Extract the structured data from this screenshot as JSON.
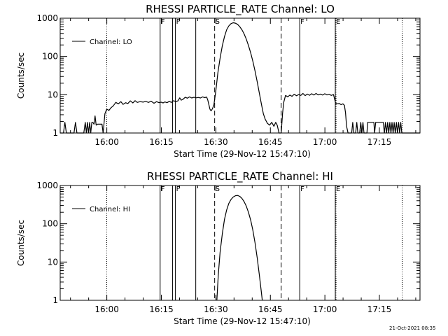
{
  "footer": {
    "date_stamp": "21-Oct-2021 08:35"
  },
  "chart_data": [
    {
      "type": "line",
      "title": "RHESSI PARTICLE_RATE Channel: LO",
      "xlabel": "Start Time (29-Nov-12 15:47:10)",
      "ylabel": "Counts/sec",
      "x_unit": "minutes after 15:47:10",
      "xlim": [
        0,
        99
      ],
      "ylim": [
        1,
        1000
      ],
      "yscale": "log",
      "xticks": [
        {
          "x": 12.83,
          "label": "16:00"
        },
        {
          "x": 27.83,
          "label": "16:15"
        },
        {
          "x": 42.83,
          "label": "16:30"
        },
        {
          "x": 57.83,
          "label": "16:45"
        },
        {
          "x": 72.83,
          "label": "17:00"
        },
        {
          "x": 87.83,
          "label": "17:15"
        }
      ],
      "yticks": [
        {
          "y": 1,
          "label": "1"
        },
        {
          "y": 10,
          "label": "10"
        },
        {
          "y": 100,
          "label": "100"
        },
        {
          "y": 1000,
          "label": "1000"
        }
      ],
      "legend": {
        "placement": "top-left",
        "entries": [
          "Channel: LO"
        ]
      },
      "series": [
        {
          "name": "Channel: LO",
          "points": [
            [
              0.0,
              1
            ],
            [
              0.9,
              1
            ],
            [
              1.3,
              1.9
            ],
            [
              1.7,
              1
            ],
            [
              3.8,
              1
            ],
            [
              4.2,
              1.9
            ],
            [
              4.6,
              1
            ],
            [
              6.5,
              1
            ],
            [
              6.9,
              1.9
            ],
            [
              7.2,
              1
            ],
            [
              7.5,
              1.9
            ],
            [
              7.8,
              1
            ],
            [
              8.1,
              1.9
            ],
            [
              8.4,
              1
            ],
            [
              8.7,
              1.9
            ],
            [
              9.0,
              1.9
            ],
            [
              9.3,
              1.7
            ],
            [
              9.6,
              2.8
            ],
            [
              9.9,
              1.6
            ],
            [
              10.3,
              1.7
            ],
            [
              11.5,
              1.7
            ],
            [
              11.8,
              1
            ],
            [
              12.3,
              3.2
            ],
            [
              12.8,
              4.2
            ],
            [
              13.4,
              3.9
            ],
            [
              14.0,
              4.6
            ],
            [
              14.6,
              5.1
            ],
            [
              15.3,
              6.3
            ],
            [
              16.0,
              5.8
            ],
            [
              16.7,
              6.6
            ],
            [
              17.3,
              5.6
            ],
            [
              18.0,
              6.2
            ],
            [
              18.6,
              5.9
            ],
            [
              19.3,
              6.9
            ],
            [
              20.0,
              6.1
            ],
            [
              20.6,
              7.0
            ],
            [
              21.2,
              6.3
            ],
            [
              22.0,
              6.6
            ],
            [
              22.8,
              6.4
            ],
            [
              23.5,
              6.7
            ],
            [
              24.3,
              6.3
            ],
            [
              25.0,
              6.8
            ],
            [
              25.8,
              6.0
            ],
            [
              26.5,
              6.6
            ],
            [
              27.2,
              6.2
            ],
            [
              27.8,
              6.4
            ],
            [
              28.3,
              6.1
            ],
            [
              28.8,
              6.5
            ],
            [
              29.4,
              6.2
            ],
            [
              30.0,
              6.7
            ],
            [
              30.6,
              6.3
            ],
            [
              31.2,
              7.0
            ],
            [
              31.8,
              6.6
            ],
            [
              32.4,
              6.9
            ],
            [
              32.9,
              8.3
            ],
            [
              33.3,
              7.2
            ],
            [
              33.8,
              7.6
            ],
            [
              34.4,
              8.6
            ],
            [
              35.0,
              8.1
            ],
            [
              35.6,
              8.8
            ],
            [
              36.2,
              8.2
            ],
            [
              36.8,
              8.6
            ],
            [
              37.4,
              8.3
            ],
            [
              38.0,
              8.5
            ],
            [
              38.6,
              8.2
            ],
            [
              39.2,
              8.8
            ],
            [
              39.8,
              8.4
            ],
            [
              40.3,
              8.7
            ],
            [
              40.6,
              7.3
            ],
            [
              40.9,
              5.6
            ],
            [
              41.2,
              4.2
            ],
            [
              41.5,
              3.8
            ],
            [
              41.9,
              4.3
            ],
            [
              42.3,
              5.5
            ],
            [
              42.8,
              12
            ],
            [
              43.4,
              38
            ],
            [
              44.0,
              90
            ],
            [
              44.6,
              190
            ],
            [
              45.2,
              330
            ],
            [
              45.8,
              500
            ],
            [
              46.4,
              630
            ],
            [
              47.0,
              720
            ],
            [
              47.6,
              760
            ],
            [
              48.2,
              740
            ],
            [
              48.8,
              690
            ],
            [
              49.4,
              600
            ],
            [
              50.0,
              500
            ],
            [
              50.6,
              390
            ],
            [
              51.2,
              285
            ],
            [
              51.8,
              195
            ],
            [
              52.4,
              125
            ],
            [
              53.0,
              75
            ],
            [
              53.6,
              42
            ],
            [
              54.2,
              22
            ],
            [
              54.8,
              11
            ],
            [
              55.4,
              5.5
            ],
            [
              55.9,
              3.2
            ],
            [
              56.4,
              2.3
            ],
            [
              57.0,
              1.8
            ],
            [
              57.6,
              1.6
            ],
            [
              58.2,
              1.9
            ],
            [
              58.8,
              1.5
            ],
            [
              59.3,
              1.9
            ],
            [
              59.7,
              1.6
            ],
            [
              60.2,
              1
            ],
            [
              60.8,
              1
            ],
            [
              61.2,
              3.3
            ],
            [
              61.5,
              6.3
            ],
            [
              62.0,
              9.6
            ],
            [
              62.6,
              8.8
            ],
            [
              63.2,
              9.8
            ],
            [
              63.8,
              9.1
            ],
            [
              64.4,
              10.3
            ],
            [
              65.0,
              9.4
            ],
            [
              65.6,
              10.1
            ],
            [
              66.2,
              9.6
            ],
            [
              66.8,
              10.8
            ],
            [
              67.4,
              9.5
            ],
            [
              68.0,
              10.4
            ],
            [
              68.6,
              9.7
            ],
            [
              69.2,
              10.6
            ],
            [
              69.8,
              9.8
            ],
            [
              70.4,
              10.8
            ],
            [
              71.0,
              9.9
            ],
            [
              71.6,
              10.4
            ],
            [
              72.2,
              9.8
            ],
            [
              72.8,
              10.6
            ],
            [
              73.4,
              9.9
            ],
            [
              74.0,
              10.3
            ],
            [
              74.6,
              9.6
            ],
            [
              75.2,
              10.1
            ],
            [
              75.8,
              6.0
            ],
            [
              76.3,
              5.8
            ],
            [
              76.8,
              5.9
            ],
            [
              77.3,
              5.5
            ],
            [
              77.8,
              5.8
            ],
            [
              78.2,
              5.3
            ],
            [
              78.5,
              3.4
            ],
            [
              78.8,
              1.5
            ],
            [
              79.2,
              1
            ],
            [
              80.2,
              1
            ],
            [
              80.5,
              1.9
            ],
            [
              80.8,
              1
            ],
            [
              81.3,
              1
            ],
            [
              81.6,
              1.9
            ],
            [
              81.9,
              1
            ],
            [
              82.4,
              1
            ],
            [
              82.7,
              1.9
            ],
            [
              83.0,
              1
            ],
            [
              83.3,
              1.9
            ],
            [
              83.6,
              1
            ],
            [
              84.4,
              1
            ],
            [
              84.6,
              1.9
            ],
            [
              86.3,
              1.9
            ],
            [
              86.5,
              1
            ],
            [
              86.8,
              1.9
            ],
            [
              88.9,
              1.9
            ],
            [
              89.2,
              1
            ],
            [
              89.5,
              1.9
            ],
            [
              89.8,
              1
            ],
            [
              90.1,
              1.9
            ],
            [
              90.4,
              1
            ],
            [
              90.7,
              1.9
            ],
            [
              91.0,
              1
            ],
            [
              91.3,
              1.9
            ],
            [
              91.6,
              1
            ],
            [
              91.9,
              1.9
            ],
            [
              92.2,
              1
            ],
            [
              92.5,
              1.9
            ],
            [
              92.8,
              1
            ],
            [
              93.1,
              1.9
            ],
            [
              93.4,
              1
            ],
            [
              93.7,
              1.9
            ],
            [
              94.0,
              1
            ],
            [
              99.0,
              1
            ]
          ]
        }
      ],
      "vlines": [
        {
          "x": 12.8,
          "style": "dotted"
        },
        {
          "x": 27.5,
          "style": "solid",
          "label": "F"
        },
        {
          "x": 30.9,
          "style": "solid"
        },
        {
          "x": 31.7,
          "style": "solid",
          "label": "F"
        },
        {
          "x": 37.3,
          "style": "solid"
        },
        {
          "x": 42.5,
          "style": "dashed",
          "label": "S"
        },
        {
          "x": 60.8,
          "style": "dashed"
        },
        {
          "x": 65.9,
          "style": "solid",
          "label": "F"
        },
        {
          "x": 75.7,
          "style": "solid",
          "label": "E"
        },
        {
          "x": 75.9,
          "style": "dotted"
        },
        {
          "x": 94.1,
          "style": "dotted"
        }
      ]
    },
    {
      "type": "line",
      "title": "RHESSI PARTICLE_RATE Channel: HI",
      "xlabel": "Start Time (29-Nov-12 15:47:10)",
      "ylabel": "Counts/sec",
      "x_unit": "minutes after 15:47:10",
      "xlim": [
        0,
        99
      ],
      "ylim": [
        1,
        1000
      ],
      "yscale": "log",
      "xticks": [
        {
          "x": 12.83,
          "label": "16:00"
        },
        {
          "x": 27.83,
          "label": "16:15"
        },
        {
          "x": 42.83,
          "label": "16:30"
        },
        {
          "x": 57.83,
          "label": "16:45"
        },
        {
          "x": 72.83,
          "label": "17:00"
        },
        {
          "x": 87.83,
          "label": "17:15"
        }
      ],
      "yticks": [
        {
          "y": 1,
          "label": "1"
        },
        {
          "y": 10,
          "label": "10"
        },
        {
          "y": 100,
          "label": "100"
        },
        {
          "y": 1000,
          "label": "1000"
        }
      ],
      "legend": {
        "placement": "top-left",
        "entries": [
          "Channel: HI"
        ]
      },
      "series": [
        {
          "name": "Channel: HI",
          "points": [
            [
              43.1,
              1
            ],
            [
              43.5,
              4.5
            ],
            [
              44.0,
              18
            ],
            [
              44.6,
              55
            ],
            [
              45.2,
              130
            ],
            [
              45.8,
              230
            ],
            [
              46.4,
              340
            ],
            [
              47.0,
              430
            ],
            [
              47.6,
              500
            ],
            [
              48.2,
              540
            ],
            [
              48.8,
              550
            ],
            [
              49.4,
              520
            ],
            [
              50.0,
              460
            ],
            [
              50.6,
              380
            ],
            [
              51.2,
              290
            ],
            [
              51.8,
              200
            ],
            [
              52.4,
              125
            ],
            [
              53.0,
              68
            ],
            [
              53.6,
              32
            ],
            [
              54.2,
              13
            ],
            [
              54.8,
              4.6
            ],
            [
              55.3,
              1.8
            ],
            [
              55.6,
              1
            ]
          ]
        }
      ],
      "vlines": [
        {
          "x": 12.8,
          "style": "dotted"
        },
        {
          "x": 27.5,
          "style": "solid",
          "label": "F"
        },
        {
          "x": 30.9,
          "style": "solid"
        },
        {
          "x": 31.7,
          "style": "solid",
          "label": "F"
        },
        {
          "x": 37.3,
          "style": "solid"
        },
        {
          "x": 42.5,
          "style": "dashed",
          "label": "S"
        },
        {
          "x": 60.8,
          "style": "dashed"
        },
        {
          "x": 65.9,
          "style": "solid",
          "label": "F"
        },
        {
          "x": 75.7,
          "style": "solid",
          "label": "E"
        },
        {
          "x": 75.9,
          "style": "dotted"
        },
        {
          "x": 94.1,
          "style": "dotted"
        }
      ]
    }
  ]
}
